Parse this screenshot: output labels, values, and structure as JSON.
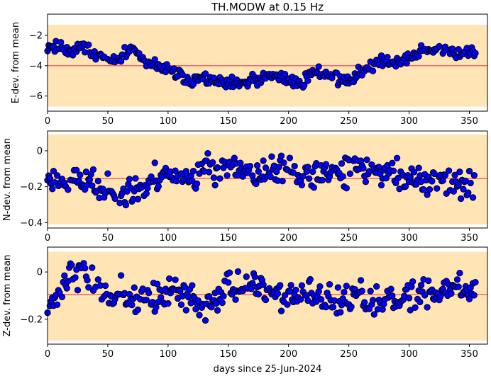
{
  "chart_data": {
    "type": "scatter",
    "title": "TH.MODW at 0.15 Hz",
    "xlabel": "days since 25-Jun-2024",
    "xlim": [
      0,
      365
    ],
    "xticks": [
      0,
      50,
      100,
      150,
      200,
      250,
      300,
      350
    ],
    "colors": {
      "band": "#ffe4b5",
      "mean_line": "#ff6666",
      "marker_fill": "#0000ff",
      "marker_edge": "#000000"
    },
    "panels": [
      {
        "ylabel": "E-dev. from mean",
        "ylim": [
          -7.0,
          -0.6
        ],
        "yticks": [
          -2,
          -4,
          -6
        ],
        "band": [
          -6.7,
          -1.3
        ],
        "mean": -4.0,
        "series_base": [
          -2.7,
          -2.8,
          -3.0,
          -2.6,
          -3.4,
          -3.4,
          -3.7,
          -2.8,
          -3.8,
          -4.0,
          -4.3,
          -4.6,
          -4.9,
          -4.8,
          -5.1,
          -5.3,
          -5.2,
          -5.0,
          -4.9,
          -4.7,
          -4.9,
          -5.2,
          -4.4,
          -4.4,
          -4.9,
          -5.1,
          -4.3,
          -3.9,
          -3.7,
          -3.7,
          -3.5,
          -3.1,
          -3.0,
          -3.0,
          -3.2,
          -3.1,
          -3.3
        ],
        "amp": 0.45,
        "seed": 11
      },
      {
        "ylabel": "N-dev. from mean",
        "ylim": [
          -0.43,
          0.11
        ],
        "yticks": [
          0.0,
          -0.2,
          -0.4
        ],
        "band": [
          -0.41,
          0.09
        ],
        "mean": -0.155,
        "series_base": [
          -0.16,
          -0.18,
          -0.16,
          -0.17,
          -0.18,
          -0.24,
          -0.22,
          -0.22,
          -0.21,
          -0.14,
          -0.14,
          -0.13,
          -0.16,
          -0.1,
          -0.09,
          -0.11,
          -0.11,
          -0.14,
          -0.13,
          -0.11,
          -0.1,
          -0.14,
          -0.14,
          -0.13,
          -0.12,
          -0.13,
          -0.11,
          -0.11,
          -0.12,
          -0.13,
          -0.15,
          -0.18,
          -0.15,
          -0.18,
          -0.17,
          -0.2,
          -0.2
        ],
        "amp": 0.09,
        "seed": 23
      },
      {
        "ylabel": "Z-dev. from mean",
        "ylim": [
          -0.305,
          0.105
        ],
        "yticks": [
          0.0,
          -0.2
        ],
        "band": [
          -0.29,
          0.085
        ],
        "mean": -0.095,
        "series_base": [
          -0.13,
          -0.09,
          0.0,
          -0.02,
          -0.06,
          -0.13,
          -0.1,
          -0.12,
          -0.12,
          -0.11,
          -0.09,
          -0.1,
          -0.11,
          -0.15,
          -0.09,
          -0.05,
          -0.06,
          -0.07,
          -0.08,
          -0.1,
          -0.09,
          -0.1,
          -0.1,
          -0.12,
          -0.12,
          -0.13,
          -0.11,
          -0.12,
          -0.11,
          -0.1,
          -0.11,
          -0.09,
          -0.08,
          -0.07,
          -0.06,
          -0.08,
          -0.1
        ],
        "amp": 0.07,
        "seed": 37
      }
    ]
  }
}
